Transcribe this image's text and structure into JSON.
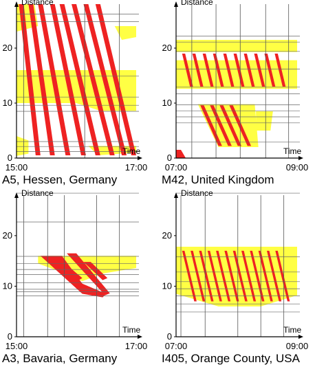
{
  "chart_data": [
    {
      "type": "heatmap",
      "caption": "A5, Hessen, Germany",
      "xlabel": "Time",
      "ylabel": "Distance",
      "xticks": [
        "15:00",
        "17:00"
      ],
      "yticks": [
        "0",
        "10",
        "20"
      ],
      "ylim": [
        0,
        28
      ],
      "free_flow_color": "#ffff44",
      "congested_color": "#ee2222"
    },
    {
      "type": "heatmap",
      "caption": "M42, United Kingdom",
      "xlabel": "Time",
      "ylabel": "Distance",
      "xticks": [
        "07:00",
        "09:00"
      ],
      "yticks": [
        "0",
        "10",
        "20"
      ],
      "ylim": [
        0,
        28
      ],
      "free_flow_color": "#ffff44",
      "congested_color": "#ee2222"
    },
    {
      "type": "heatmap",
      "caption": "A3, Bavaria, Germany",
      "xlabel": "Time",
      "ylabel": "Distance",
      "xticks": [
        "15:00",
        "17:00"
      ],
      "yticks": [
        "0",
        "10",
        "20"
      ],
      "ylim": [
        0,
        28
      ],
      "free_flow_color": "#ffff44",
      "congested_color": "#ee2222"
    },
    {
      "type": "heatmap",
      "caption": "I405, Orange County, USA",
      "xlabel": "Time",
      "ylabel": "Distance",
      "xticks": [
        "07:00",
        "09:00"
      ],
      "yticks": [
        "0",
        "10",
        "20"
      ],
      "ylim": [
        0,
        28
      ],
      "free_flow_color": "#ffff44",
      "congested_color": "#ee2222"
    }
  ]
}
